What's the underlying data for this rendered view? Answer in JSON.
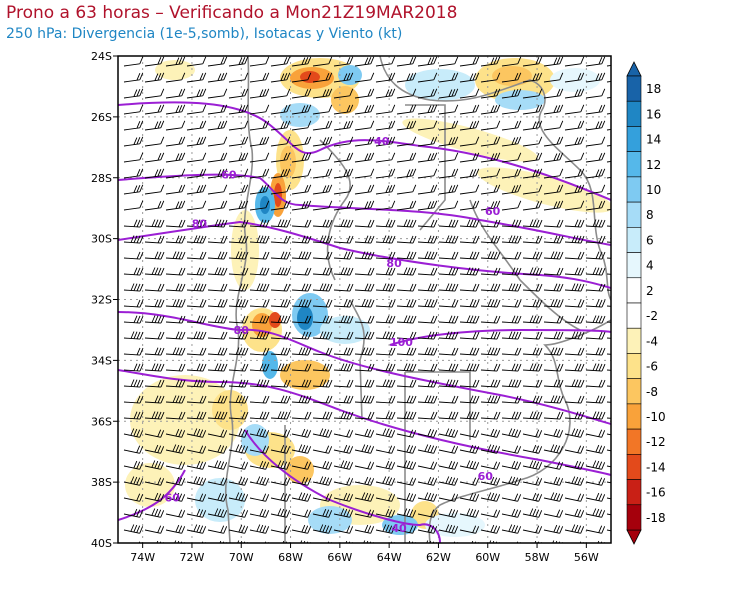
{
  "header": {
    "title": "Prono a 63 horas – Verificando a Mon21Z19MAR2018",
    "subtitle": "250 hPa: Divergencia (1e-5,somb), Isotacas y Viento (kt)"
  },
  "map": {
    "lon_range": [
      -75,
      -55
    ],
    "lat_range": [
      -40,
      -24
    ],
    "lat_ticks": [
      "24S",
      "26S",
      "28S",
      "30S",
      "32S",
      "34S",
      "36S",
      "38S",
      "40S"
    ],
    "lon_ticks": [
      "74W",
      "72W",
      "70W",
      "68W",
      "66W",
      "64W",
      "62W",
      "60W",
      "58W",
      "56W"
    ],
    "lat_tick_values": [
      -24,
      -26,
      -28,
      -30,
      -32,
      -34,
      -36,
      -38,
      -40
    ],
    "lon_tick_values": [
      -74,
      -72,
      -70,
      -68,
      -66,
      -64,
      -62,
      -60,
      -58,
      -56
    ],
    "isotach_labels": [
      {
        "text": "40",
        "lon": -64.3,
        "lat": -26.8
      },
      {
        "text": "60",
        "lon": -70.5,
        "lat": -27.9
      },
      {
        "text": "60",
        "lon": -59.8,
        "lat": -29.1
      },
      {
        "text": "80",
        "lon": -71.7,
        "lat": -29.5
      },
      {
        "text": "80",
        "lon": -63.8,
        "lat": -30.8
      },
      {
        "text": "80",
        "lon": -70.0,
        "lat": -33.0
      },
      {
        "text": "100",
        "lon": -63.5,
        "lat": -33.4
      },
      {
        "text": "60",
        "lon": -60.1,
        "lat": -37.8
      },
      {
        "text": "60",
        "lon": -72.8,
        "lat": -38.5
      },
      {
        "text": "40",
        "lon": -63.6,
        "lat": -39.5
      }
    ],
    "colors": {
      "isotach": "#9b1fd4",
      "coast": "#8c8c8c",
      "barb": "#000000"
    }
  },
  "colorbar": {
    "labels": [
      "18",
      "16",
      "14",
      "12",
      "10",
      "8",
      "6",
      "4",
      "2",
      "-2",
      "-4",
      "-6",
      "-8",
      "-10",
      "-12",
      "-14",
      "-16",
      "-18"
    ],
    "colors": [
      "#1863a8",
      "#1f86c4",
      "#34a0dc",
      "#55b8ea",
      "#7ecaf2",
      "#a6dcf7",
      "#c8ecfa",
      "#e6f7fd",
      "#ffffff",
      "#ffffff",
      "#fdf2b8",
      "#fde28a",
      "#fcc660",
      "#f9a23a",
      "#f27626",
      "#e34a1b",
      "#c92016",
      "#a5000c"
    ]
  }
}
